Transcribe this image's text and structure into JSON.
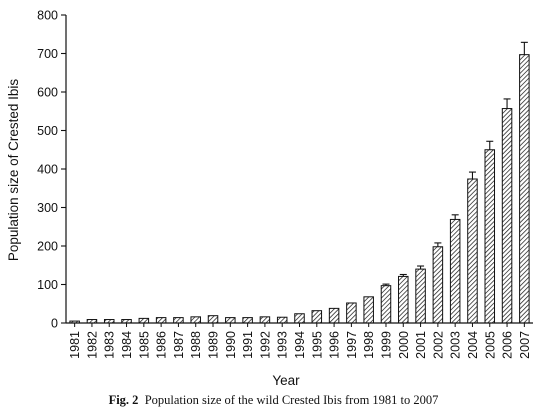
{
  "caption": {
    "label": "Fig. 2",
    "text": "Population size of the wild Crested Ibis from 1981 to 2007"
  },
  "chart_data": {
    "type": "bar",
    "xlabel": "Year",
    "ylabel": "Population size of Crested Ibis",
    "ylim": [
      0,
      800
    ],
    "yticks": [
      0,
      100,
      200,
      300,
      400,
      500,
      600,
      700,
      800
    ],
    "grid": false,
    "bar_fill": "diagonal hatch",
    "error_bars": true,
    "categories": [
      "1981",
      "1982",
      "1983",
      "1984",
      "1985",
      "1986",
      "1987",
      "1988",
      "1989",
      "1990",
      "1991",
      "1992",
      "1993",
      "1994",
      "1995",
      "1996",
      "1997",
      "1998",
      "1999",
      "2000",
      "2001",
      "2002",
      "2003",
      "2004",
      "2005",
      "2006",
      "2007"
    ],
    "values": [
      5,
      9,
      9,
      9,
      12,
      14,
      14,
      16,
      19,
      14,
      14,
      16,
      15,
      24,
      32,
      38,
      52,
      68,
      97,
      121,
      140,
      198,
      269,
      374,
      450,
      557,
      697
    ],
    "errors": [
      0,
      0,
      0,
      0,
      0,
      0,
      0,
      0,
      0,
      0,
      0,
      0,
      0,
      0,
      0,
      0,
      0,
      0,
      4,
      5,
      8,
      10,
      12,
      18,
      22,
      25,
      32
    ]
  }
}
